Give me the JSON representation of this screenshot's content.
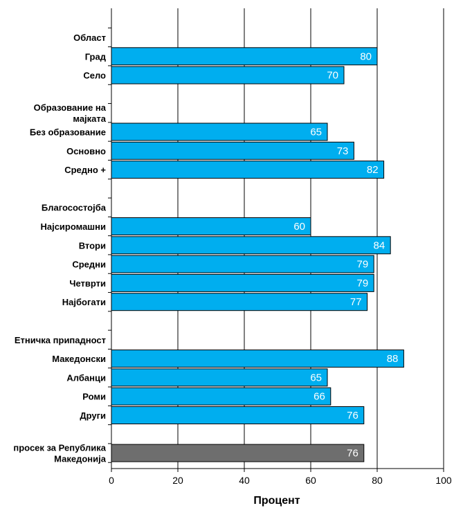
{
  "chart_data": {
    "type": "bar",
    "orientation": "horizontal",
    "xlabel": "Процент",
    "xlim": [
      0,
      100
    ],
    "xticks": [
      0,
      20,
      40,
      60,
      80,
      100
    ],
    "grid": "vertical",
    "colors": {
      "bar": "#00aeef",
      "average_bar": "#6e6e6e",
      "bar_edge": "#000000",
      "grid": "#000000"
    },
    "rows": [
      {
        "label": "Област",
        "value": null,
        "header": true
      },
      {
        "label": "Град",
        "value": 80
      },
      {
        "label": "Село",
        "value": 70
      },
      {
        "label": "",
        "value": null,
        "spacer": true
      },
      {
        "label": "Образование на мајката",
        "value": null,
        "header": true
      },
      {
        "label": "Без образование",
        "value": 65
      },
      {
        "label": "Основно",
        "value": 73
      },
      {
        "label": "Средно +",
        "value": 82
      },
      {
        "label": "",
        "value": null,
        "spacer": true
      },
      {
        "label": "Благосостојба",
        "value": null,
        "header": true
      },
      {
        "label": "Најсиромашни",
        "value": 60
      },
      {
        "label": "Втори",
        "value": 84
      },
      {
        "label": "Средни",
        "value": 79
      },
      {
        "label": "Четврти",
        "value": 79
      },
      {
        "label": "Најбогати",
        "value": 77
      },
      {
        "label": "",
        "value": null,
        "spacer": true
      },
      {
        "label": "Етничка припадност",
        "value": null,
        "header": true
      },
      {
        "label": "Македонски",
        "value": 88
      },
      {
        "label": "Албанци",
        "value": 65
      },
      {
        "label": "Роми",
        "value": 66
      },
      {
        "label": "Други",
        "value": 76
      },
      {
        "label": "",
        "value": null,
        "spacer": true
      },
      {
        "label": "просек за Република Македонија",
        "value": 76,
        "average": true
      }
    ]
  }
}
